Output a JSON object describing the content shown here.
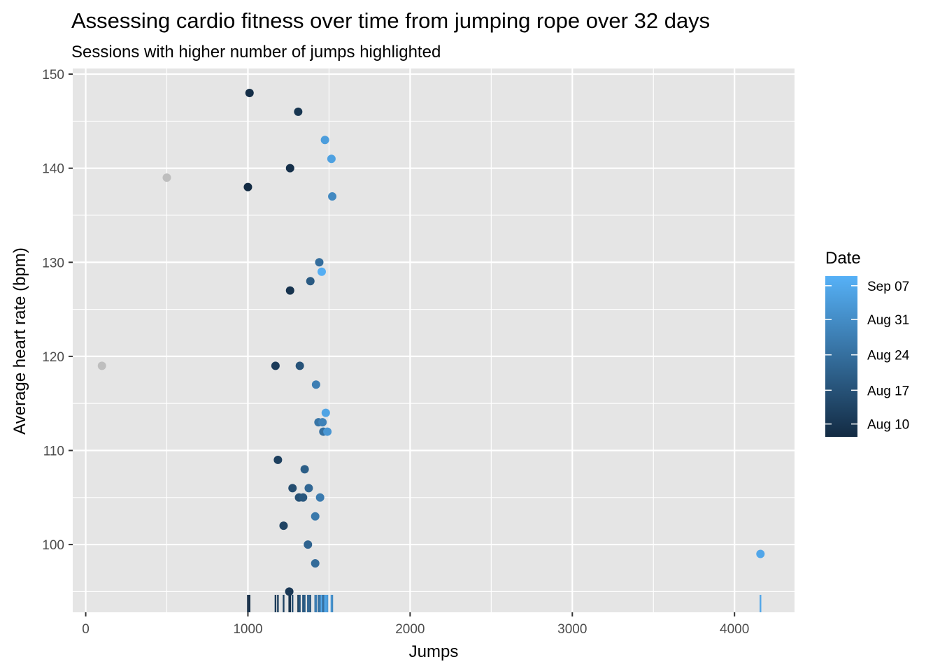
{
  "chart_data": {
    "type": "scatter",
    "title": "Assessing cardio fitness over time from jumping rope over 32 days",
    "subtitle": "Sessions with higher number of jumps highlighted",
    "xlabel": "Jumps",
    "ylabel": "Average heart rate (bpm)",
    "xlim": [
      -80,
      4370
    ],
    "ylim": [
      92.8,
      150.6
    ],
    "x_ticks": [
      0,
      1000,
      2000,
      3000,
      4000
    ],
    "x_tick_labels": [
      "0",
      "1000",
      "2000",
      "3000",
      "4000"
    ],
    "y_ticks": [
      100,
      110,
      120,
      130,
      140,
      150
    ],
    "y_tick_labels": [
      "100",
      "110",
      "120",
      "130",
      "140",
      "150"
    ],
    "grid": true,
    "panel_background": "#e5e5e5",
    "grid_color": "#ffffff",
    "highlight_rule": "sessions with 1000 or more jumps colored by date; others gray",
    "unhighlighted_color": "#bebebe",
    "color_scale": {
      "low": "#132b43",
      "high": "#56b1f7"
    },
    "legend": {
      "title": "Date",
      "position": "right",
      "labels": [
        "Sep 07",
        "Aug 31",
        "Aug 24",
        "Aug 17",
        "Aug 10"
      ],
      "label_fractions": [
        0.94,
        0.73,
        0.51,
        0.29,
        0.08
      ]
    },
    "points": [
      {
        "x": 100,
        "y": 119,
        "c": null
      },
      {
        "x": 500,
        "y": 139,
        "c": null
      },
      {
        "x": 1000,
        "y": 138,
        "c": 0.0
      },
      {
        "x": 1010,
        "y": 148,
        "c": 0.02
      },
      {
        "x": 1170,
        "y": 119,
        "c": 0.12
      },
      {
        "x": 1185,
        "y": 109,
        "c": 0.15
      },
      {
        "x": 1220,
        "y": 102,
        "c": 0.18
      },
      {
        "x": 1255,
        "y": 95,
        "c": 0.1
      },
      {
        "x": 1260,
        "y": 140,
        "c": 0.04
      },
      {
        "x": 1260,
        "y": 127,
        "c": 0.06
      },
      {
        "x": 1275,
        "y": 106,
        "c": 0.25
      },
      {
        "x": 1310,
        "y": 146,
        "c": 0.08
      },
      {
        "x": 1315,
        "y": 105,
        "c": 0.28
      },
      {
        "x": 1320,
        "y": 119,
        "c": 0.3
      },
      {
        "x": 1340,
        "y": 105,
        "c": 0.33
      },
      {
        "x": 1350,
        "y": 108,
        "c": 0.38
      },
      {
        "x": 1370,
        "y": 100,
        "c": 0.42
      },
      {
        "x": 1375,
        "y": 106,
        "c": 0.45
      },
      {
        "x": 1385,
        "y": 128,
        "c": 0.35
      },
      {
        "x": 1415,
        "y": 98,
        "c": 0.48
      },
      {
        "x": 1415,
        "y": 103,
        "c": 0.58
      },
      {
        "x": 1420,
        "y": 117,
        "c": 0.62
      },
      {
        "x": 1435,
        "y": 113,
        "c": 0.55
      },
      {
        "x": 1440,
        "y": 130,
        "c": 0.5
      },
      {
        "x": 1445,
        "y": 105,
        "c": 0.6
      },
      {
        "x": 1455,
        "y": 129,
        "c": 0.98
      },
      {
        "x": 1460,
        "y": 113,
        "c": 0.65
      },
      {
        "x": 1465,
        "y": 112,
        "c": 0.52
      },
      {
        "x": 1475,
        "y": 143,
        "c": 0.85
      },
      {
        "x": 1480,
        "y": 114,
        "c": 0.9
      },
      {
        "x": 1490,
        "y": 112,
        "c": 0.8
      },
      {
        "x": 1515,
        "y": 141,
        "c": 0.88
      },
      {
        "x": 1520,
        "y": 137,
        "c": 0.7
      },
      {
        "x": 4160,
        "y": 99,
        "c": 0.92
      }
    ]
  }
}
